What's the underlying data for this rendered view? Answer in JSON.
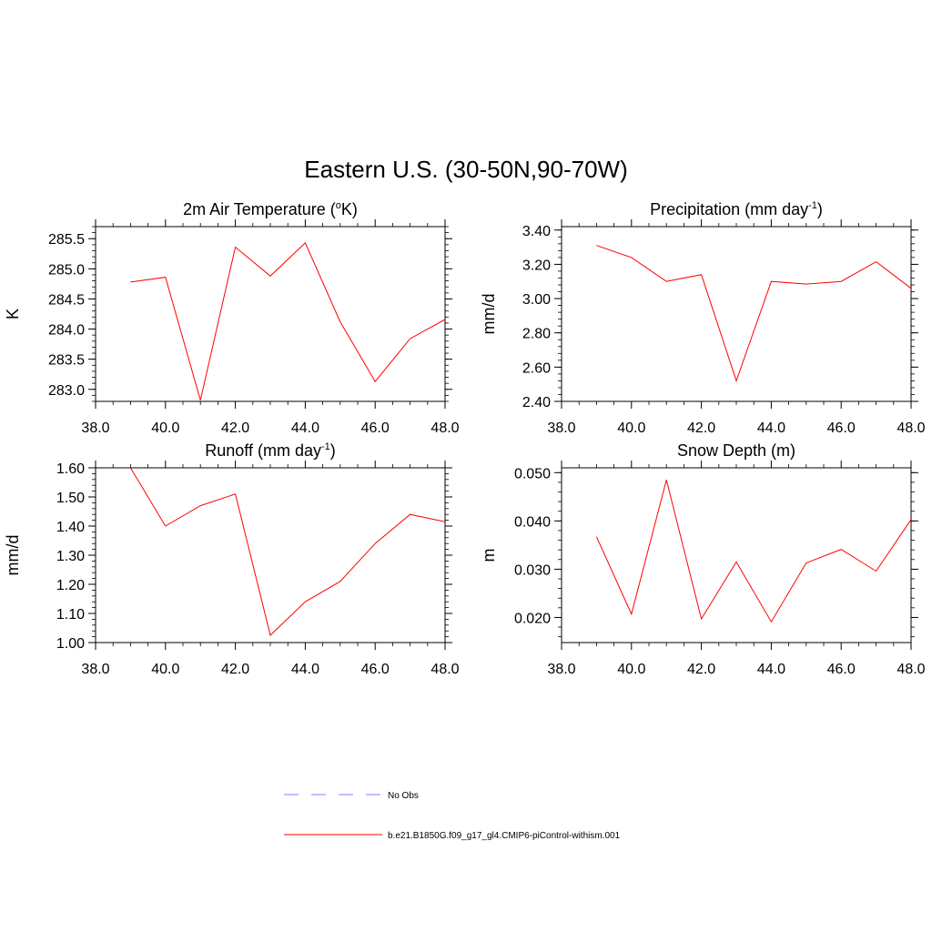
{
  "figure": {
    "title": "Eastern U.S. (30-50N,90-70W)"
  },
  "legend": {
    "entries": [
      {
        "label": "No Obs",
        "color": "#9999ff",
        "dashed": true
      },
      {
        "label": "b.e21.B1850G.f09_g17_gl4.CMIP6-piControl-withism.001",
        "color": "#ff0000",
        "dashed": false
      }
    ]
  },
  "chart_data": [
    {
      "type": "line",
      "title_main": "2m Air Temperature (",
      "title_sup": "o",
      "title_tail": "K)",
      "ylabel": "K",
      "xlim": [
        38,
        48
      ],
      "ylim": [
        282.8,
        285.7
      ],
      "xticks": [
        38,
        40,
        42,
        44,
        46,
        48
      ],
      "xtick_labels": [
        "38.0",
        "40.0",
        "42.0",
        "44.0",
        "46.0",
        "48.0"
      ],
      "yticks": [
        283.0,
        283.5,
        284.0,
        284.5,
        285.0,
        285.5
      ],
      "ytick_labels": [
        "283.0",
        "283.5",
        "284.0",
        "284.5",
        "285.0",
        "285.5"
      ],
      "y_minor": 0.1,
      "series": [
        {
          "name": "b.e21.B1850G.f09_g17_gl4.CMIP6-piControl-withism.001",
          "color": "#ff0000",
          "x": [
            39,
            40,
            41,
            42,
            43,
            44,
            45,
            46,
            47,
            48
          ],
          "y": [
            284.78,
            284.86,
            282.82,
            285.36,
            284.88,
            285.43,
            284.12,
            283.13,
            283.84,
            284.16
          ]
        }
      ]
    },
    {
      "type": "line",
      "title_main": "Precipitation (mm day",
      "title_sup": "-1",
      "title_tail": ")",
      "ylabel": "mm/d",
      "xlim": [
        38,
        48
      ],
      "ylim": [
        2.4,
        3.42
      ],
      "xticks": [
        38,
        40,
        42,
        44,
        46,
        48
      ],
      "xtick_labels": [
        "38.0",
        "40.0",
        "42.0",
        "44.0",
        "46.0",
        "48.0"
      ],
      "yticks": [
        2.4,
        2.6,
        2.8,
        3.0,
        3.2,
        3.4
      ],
      "ytick_labels": [
        "2.40",
        "2.60",
        "2.80",
        "3.00",
        "3.20",
        "3.40"
      ],
      "y_minor": 0.04,
      "series": [
        {
          "name": "b.e21.B1850G.f09_g17_gl4.CMIP6-piControl-withism.001",
          "color": "#ff0000",
          "x": [
            39,
            40,
            41,
            42,
            43,
            44,
            45,
            46,
            47,
            48
          ],
          "y": [
            3.31,
            3.24,
            3.1,
            3.14,
            2.52,
            3.1,
            3.085,
            3.1,
            3.215,
            3.06
          ]
        }
      ]
    },
    {
      "type": "line",
      "title_main": "Runoff (mm day",
      "title_sup": "-1",
      "title_tail": ")",
      "ylabel": "mm/d",
      "xlim": [
        38,
        48
      ],
      "ylim": [
        1.0,
        1.6
      ],
      "xticks": [
        38,
        40,
        42,
        44,
        46,
        48
      ],
      "xtick_labels": [
        "38.0",
        "40.0",
        "42.0",
        "44.0",
        "46.0",
        "48.0"
      ],
      "yticks": [
        1.0,
        1.1,
        1.2,
        1.3,
        1.4,
        1.5,
        1.6
      ],
      "ytick_labels": [
        "1.00",
        "1.10",
        "1.20",
        "1.30",
        "1.40",
        "1.50",
        "1.60"
      ],
      "y_minor": 0.02,
      "series": [
        {
          "name": "b.e21.B1850G.f09_g17_gl4.CMIP6-piControl-withism.001",
          "color": "#ff0000",
          "x": [
            39,
            40,
            41,
            42,
            43,
            44,
            45,
            46,
            47,
            48
          ],
          "y": [
            1.6,
            1.4,
            1.47,
            1.51,
            1.025,
            1.14,
            1.21,
            1.34,
            1.44,
            1.415
          ]
        }
      ]
    },
    {
      "type": "line",
      "title_main": "Snow Depth (m)",
      "title_sup": "",
      "title_tail": "",
      "ylabel": "m",
      "xlim": [
        38,
        48
      ],
      "ylim": [
        0.0148,
        0.051
      ],
      "xticks": [
        38,
        40,
        42,
        44,
        46,
        48
      ],
      "xtick_labels": [
        "38.0",
        "40.0",
        "42.0",
        "44.0",
        "46.0",
        "48.0"
      ],
      "yticks": [
        0.02,
        0.03,
        0.04,
        0.05
      ],
      "ytick_labels": [
        "0.020",
        "0.030",
        "0.040",
        "0.050"
      ],
      "y_minor": 0.002,
      "series": [
        {
          "name": "b.e21.B1850G.f09_g17_gl4.CMIP6-piControl-withism.001",
          "color": "#ff0000",
          "x": [
            39,
            40,
            41,
            42,
            43,
            44,
            45,
            46,
            47,
            48
          ],
          "y": [
            0.0367,
            0.0207,
            0.0485,
            0.0197,
            0.0315,
            0.0191,
            0.0313,
            0.0341,
            0.0296,
            0.0403
          ]
        }
      ]
    }
  ]
}
